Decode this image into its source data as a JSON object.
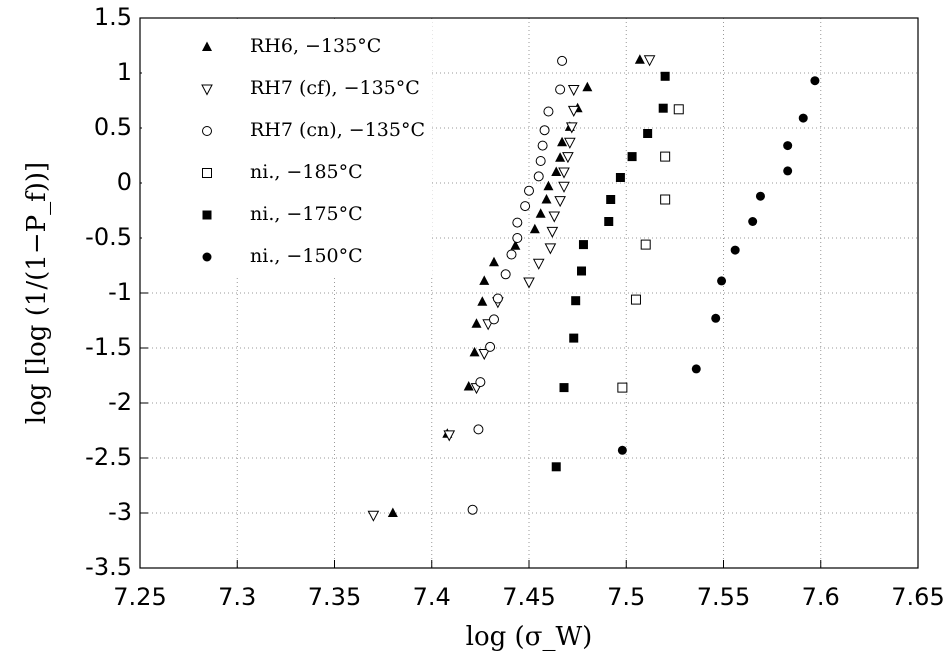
{
  "chart_data": {
    "type": "scatter",
    "x_label": "log (σ_W)",
    "y_label": "log [log (1/(1−P_f))]",
    "xlim": [
      7.25,
      7.65
    ],
    "xticks": [
      7.25,
      7.3,
      7.35,
      7.4,
      7.45,
      7.5,
      7.55,
      7.6,
      7.65
    ],
    "ylim": [
      -3.5,
      1.5
    ],
    "yticks": [
      -3.5,
      -3,
      -2.5,
      -2,
      -1.5,
      -1,
      -0.5,
      0,
      0.5,
      1,
      1.5
    ],
    "grid": true,
    "legend": "upper-left",
    "series": [
      {
        "name": "RH6, −135°C",
        "color": "#000000",
        "marker": "triangle-up",
        "x": [
          7.38,
          7.408,
          7.419,
          7.422,
          7.423,
          7.426,
          7.427,
          7.432,
          7.443,
          7.453,
          7.456,
          7.459,
          7.46,
          7.464,
          7.466,
          7.467,
          7.471,
          7.475,
          7.48,
          7.507
        ],
        "values": [
          -3.0,
          -2.28,
          -1.85,
          -1.54,
          -1.28,
          -1.08,
          -0.89,
          -0.72,
          -0.57,
          -0.42,
          -0.28,
          -0.15,
          -0.03,
          0.1,
          0.23,
          0.37,
          0.51,
          0.68,
          0.87,
          1.12
        ]
      },
      {
        "name": "RH7 (cf), −135°C",
        "color": "#000000",
        "marker": "triangle-down-open",
        "x": [
          7.37,
          7.409,
          7.423,
          7.427,
          7.429,
          7.434,
          7.45,
          7.455,
          7.461,
          7.462,
          7.463,
          7.466,
          7.468,
          7.468,
          7.47,
          7.471,
          7.472,
          7.473,
          7.473,
          7.512
        ],
        "values": [
          -3.02,
          -2.29,
          -1.86,
          -1.55,
          -1.28,
          -1.08,
          -0.9,
          -0.73,
          -0.59,
          -0.44,
          -0.3,
          -0.16,
          -0.03,
          0.1,
          0.24,
          0.37,
          0.51,
          0.66,
          0.85,
          1.12
        ]
      },
      {
        "name": "RH7 (cn), −135°C",
        "color": "#000000",
        "marker": "circle-open",
        "x": [
          7.421,
          7.424,
          7.425,
          7.43,
          7.432,
          7.434,
          7.438,
          7.441,
          7.444,
          7.444,
          7.448,
          7.45,
          7.455,
          7.456,
          7.457,
          7.458,
          7.46,
          7.466,
          7.467
        ],
        "values": [
          -2.97,
          -2.24,
          -1.81,
          -1.49,
          -1.24,
          -1.05,
          -0.83,
          -0.65,
          -0.5,
          -0.36,
          -0.21,
          -0.07,
          0.06,
          0.2,
          0.34,
          0.48,
          0.65,
          0.85,
          1.11
        ]
      },
      {
        "name": "ni., −185°C",
        "color": "#000000",
        "marker": "square-open",
        "x": [
          7.498,
          7.505,
          7.51,
          7.52,
          7.52,
          7.527
        ],
        "values": [
          -1.86,
          -1.06,
          -0.56,
          -0.15,
          0.24,
          0.67
        ]
      },
      {
        "name": "ni., −175°C",
        "color": "#000000",
        "marker": "square",
        "x": [
          7.464,
          7.468,
          7.473,
          7.474,
          7.477,
          7.478,
          7.491,
          7.492,
          7.497,
          7.503,
          7.511,
          7.519,
          7.52
        ],
        "values": [
          -2.58,
          -1.86,
          -1.41,
          -1.07,
          -0.8,
          -0.56,
          -0.35,
          -0.15,
          0.05,
          0.24,
          0.45,
          0.68,
          0.97
        ]
      },
      {
        "name": "ni., −150°C",
        "color": "#000000",
        "marker": "circle",
        "x": [
          7.498,
          7.536,
          7.546,
          7.549,
          7.556,
          7.565,
          7.569,
          7.583,
          7.583,
          7.591,
          7.597
        ],
        "values": [
          -2.43,
          -1.69,
          -1.23,
          -0.89,
          -0.61,
          -0.35,
          -0.12,
          0.11,
          0.34,
          0.59,
          0.93
        ]
      }
    ]
  }
}
